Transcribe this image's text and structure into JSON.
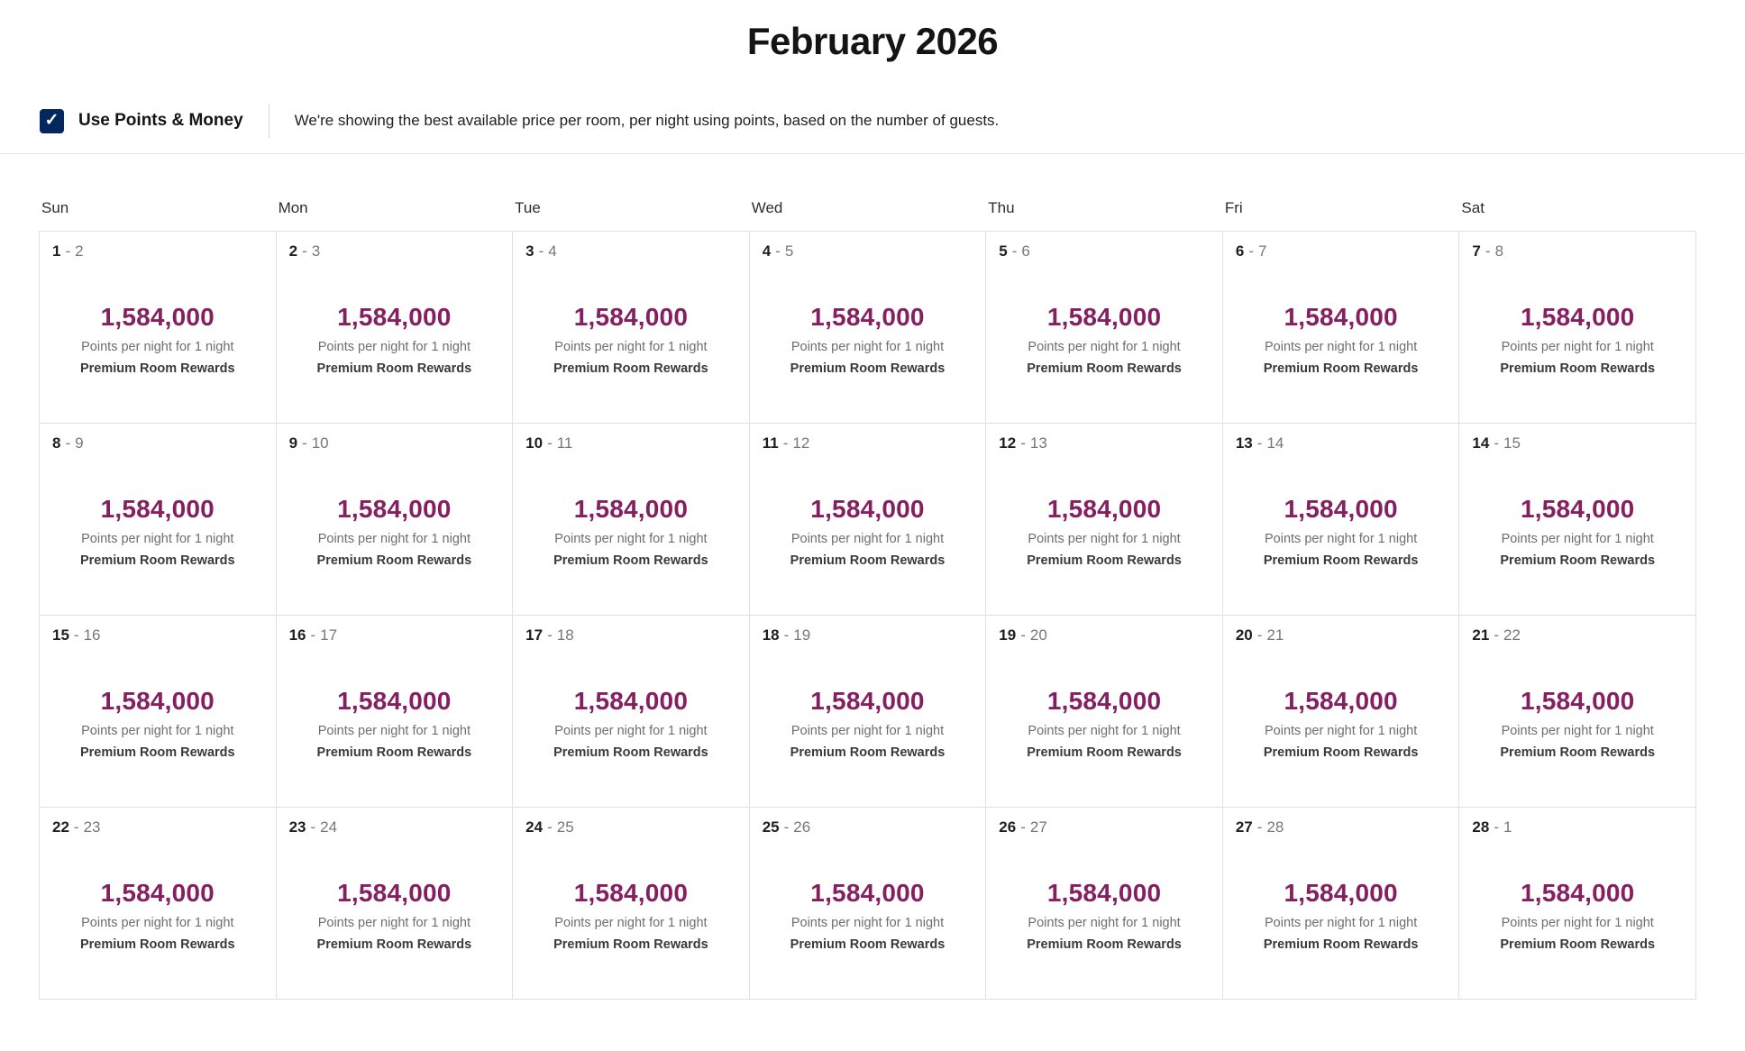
{
  "page": {
    "title": "February 2026"
  },
  "controls": {
    "toggle_label": "Use Points & Money",
    "toggle_checked": true,
    "checkmark_glyph": "✓",
    "description": "We're showing the best available price per room, per night using points, based on the number of guests."
  },
  "calendar": {
    "weekdays": [
      "Sun",
      "Mon",
      "Tue",
      "Wed",
      "Thu",
      "Fri",
      "Sat"
    ],
    "date_separator": "-",
    "points_caption": "Points per night for 1 night",
    "reward_label": "Premium Room Rewards",
    "cells": [
      {
        "start": "1",
        "end": "2",
        "price": "1,584,000"
      },
      {
        "start": "2",
        "end": "3",
        "price": "1,584,000"
      },
      {
        "start": "3",
        "end": "4",
        "price": "1,584,000"
      },
      {
        "start": "4",
        "end": "5",
        "price": "1,584,000"
      },
      {
        "start": "5",
        "end": "6",
        "price": "1,584,000"
      },
      {
        "start": "6",
        "end": "7",
        "price": "1,584,000"
      },
      {
        "start": "7",
        "end": "8",
        "price": "1,584,000"
      },
      {
        "start": "8",
        "end": "9",
        "price": "1,584,000"
      },
      {
        "start": "9",
        "end": "10",
        "price": "1,584,000"
      },
      {
        "start": "10",
        "end": "11",
        "price": "1,584,000"
      },
      {
        "start": "11",
        "end": "12",
        "price": "1,584,000"
      },
      {
        "start": "12",
        "end": "13",
        "price": "1,584,000"
      },
      {
        "start": "13",
        "end": "14",
        "price": "1,584,000"
      },
      {
        "start": "14",
        "end": "15",
        "price": "1,584,000"
      },
      {
        "start": "15",
        "end": "16",
        "price": "1,584,000"
      },
      {
        "start": "16",
        "end": "17",
        "price": "1,584,000"
      },
      {
        "start": "17",
        "end": "18",
        "price": "1,584,000"
      },
      {
        "start": "18",
        "end": "19",
        "price": "1,584,000"
      },
      {
        "start": "19",
        "end": "20",
        "price": "1,584,000"
      },
      {
        "start": "20",
        "end": "21",
        "price": "1,584,000"
      },
      {
        "start": "21",
        "end": "22",
        "price": "1,584,000"
      },
      {
        "start": "22",
        "end": "23",
        "price": "1,584,000"
      },
      {
        "start": "23",
        "end": "24",
        "price": "1,584,000"
      },
      {
        "start": "24",
        "end": "25",
        "price": "1,584,000"
      },
      {
        "start": "25",
        "end": "26",
        "price": "1,584,000"
      },
      {
        "start": "26",
        "end": "27",
        "price": "1,584,000"
      },
      {
        "start": "27",
        "end": "28",
        "price": "1,584,000"
      },
      {
        "start": "28",
        "end": "1",
        "price": "1,584,000"
      }
    ]
  },
  "colors": {
    "navy": "#04275E",
    "berry": "#861F5F",
    "border": "#E1E1E1",
    "text_primary": "#1F1F1F",
    "text_secondary": "#6E6E6E"
  }
}
